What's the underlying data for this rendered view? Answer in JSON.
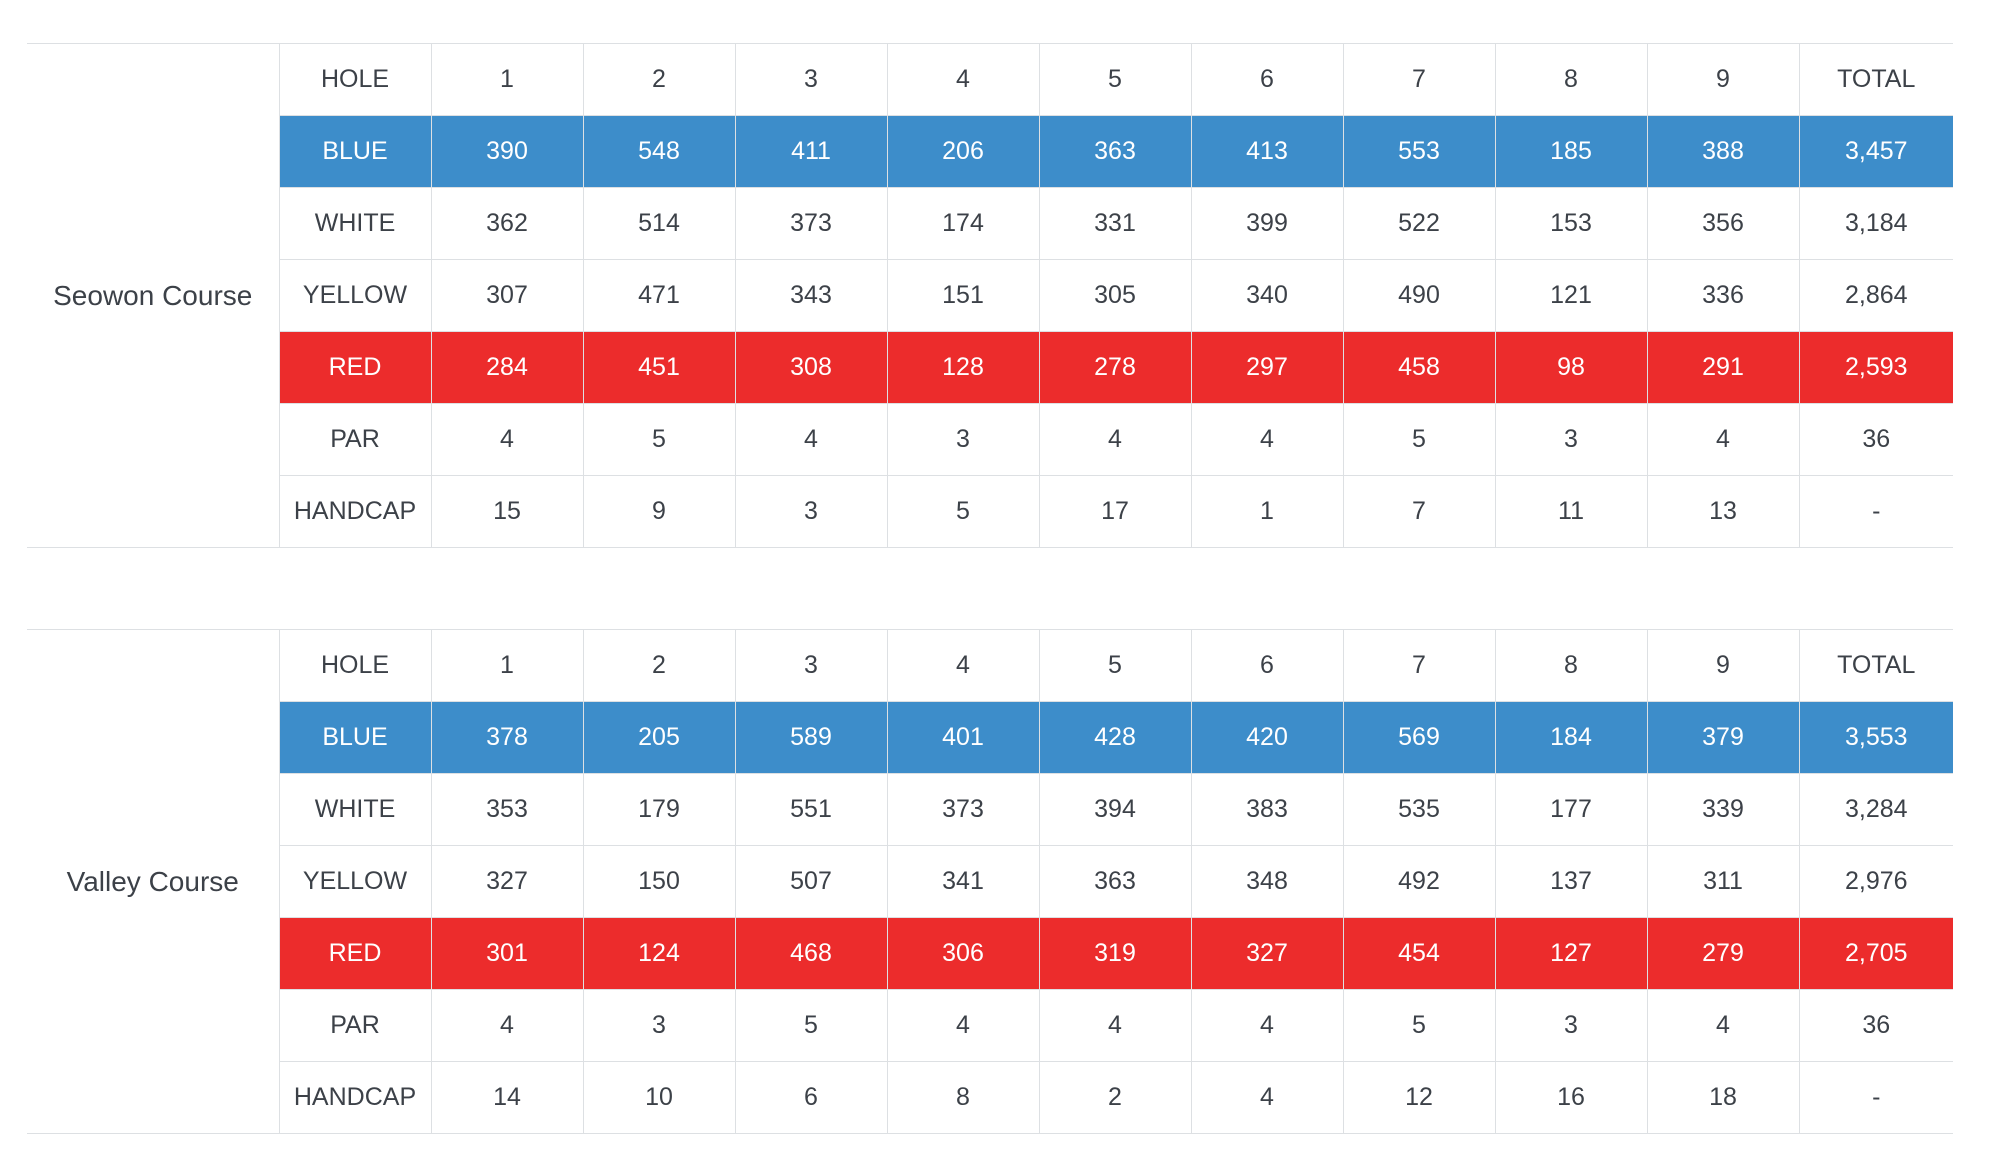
{
  "colors": {
    "blue_row": "#3d8dca",
    "red_row": "#ec2c2c",
    "text": "#3c4148",
    "light_text": "#ffffff",
    "border": "#dde0e3",
    "background": "#ffffff"
  },
  "tables": [
    {
      "course": "Seowon Course",
      "header": {
        "hole_label": "HOLE",
        "holes": [
          "1",
          "2",
          "3",
          "4",
          "5",
          "6",
          "7",
          "8",
          "9"
        ],
        "total_label": "TOTAL"
      },
      "rows": [
        {
          "label": "BLUE",
          "style": "blue",
          "values": [
            "390",
            "548",
            "411",
            "206",
            "363",
            "413",
            "553",
            "185",
            "388"
          ],
          "total": "3,457"
        },
        {
          "label": "WHITE",
          "style": "plain",
          "values": [
            "362",
            "514",
            "373",
            "174",
            "331",
            "399",
            "522",
            "153",
            "356"
          ],
          "total": "3,184"
        },
        {
          "label": "YELLOW",
          "style": "plain",
          "values": [
            "307",
            "471",
            "343",
            "151",
            "305",
            "340",
            "490",
            "121",
            "336"
          ],
          "total": "2,864"
        },
        {
          "label": "RED",
          "style": "red",
          "values": [
            "284",
            "451",
            "308",
            "128",
            "278",
            "297",
            "458",
            "98",
            "291"
          ],
          "total": "2,593"
        },
        {
          "label": "PAR",
          "style": "plain",
          "values": [
            "4",
            "5",
            "4",
            "3",
            "4",
            "4",
            "5",
            "3",
            "4"
          ],
          "total": "36"
        },
        {
          "label": "HANDCAP",
          "style": "plain",
          "values": [
            "15",
            "9",
            "3",
            "5",
            "17",
            "1",
            "7",
            "11",
            "13"
          ],
          "total": "-"
        }
      ]
    },
    {
      "course": "Valley Course",
      "header": {
        "hole_label": "HOLE",
        "holes": [
          "1",
          "2",
          "3",
          "4",
          "5",
          "6",
          "7",
          "8",
          "9"
        ],
        "total_label": "TOTAL"
      },
      "rows": [
        {
          "label": "BLUE",
          "style": "blue",
          "values": [
            "378",
            "205",
            "589",
            "401",
            "428",
            "420",
            "569",
            "184",
            "379"
          ],
          "total": "3,553"
        },
        {
          "label": "WHITE",
          "style": "plain",
          "values": [
            "353",
            "179",
            "551",
            "373",
            "394",
            "383",
            "535",
            "177",
            "339"
          ],
          "total": "3,284"
        },
        {
          "label": "YELLOW",
          "style": "plain",
          "values": [
            "327",
            "150",
            "507",
            "341",
            "363",
            "348",
            "492",
            "137",
            "311"
          ],
          "total": "2,976"
        },
        {
          "label": "RED",
          "style": "red",
          "values": [
            "301",
            "124",
            "468",
            "306",
            "319",
            "327",
            "454",
            "127",
            "279"
          ],
          "total": "2,705"
        },
        {
          "label": "PAR",
          "style": "plain",
          "values": [
            "4",
            "3",
            "5",
            "4",
            "4",
            "4",
            "5",
            "3",
            "4"
          ],
          "total": "36"
        },
        {
          "label": "HANDCAP",
          "style": "plain",
          "values": [
            "14",
            "10",
            "6",
            "8",
            "2",
            "4",
            "12",
            "16",
            "18"
          ],
          "total": "-"
        }
      ]
    }
  ]
}
